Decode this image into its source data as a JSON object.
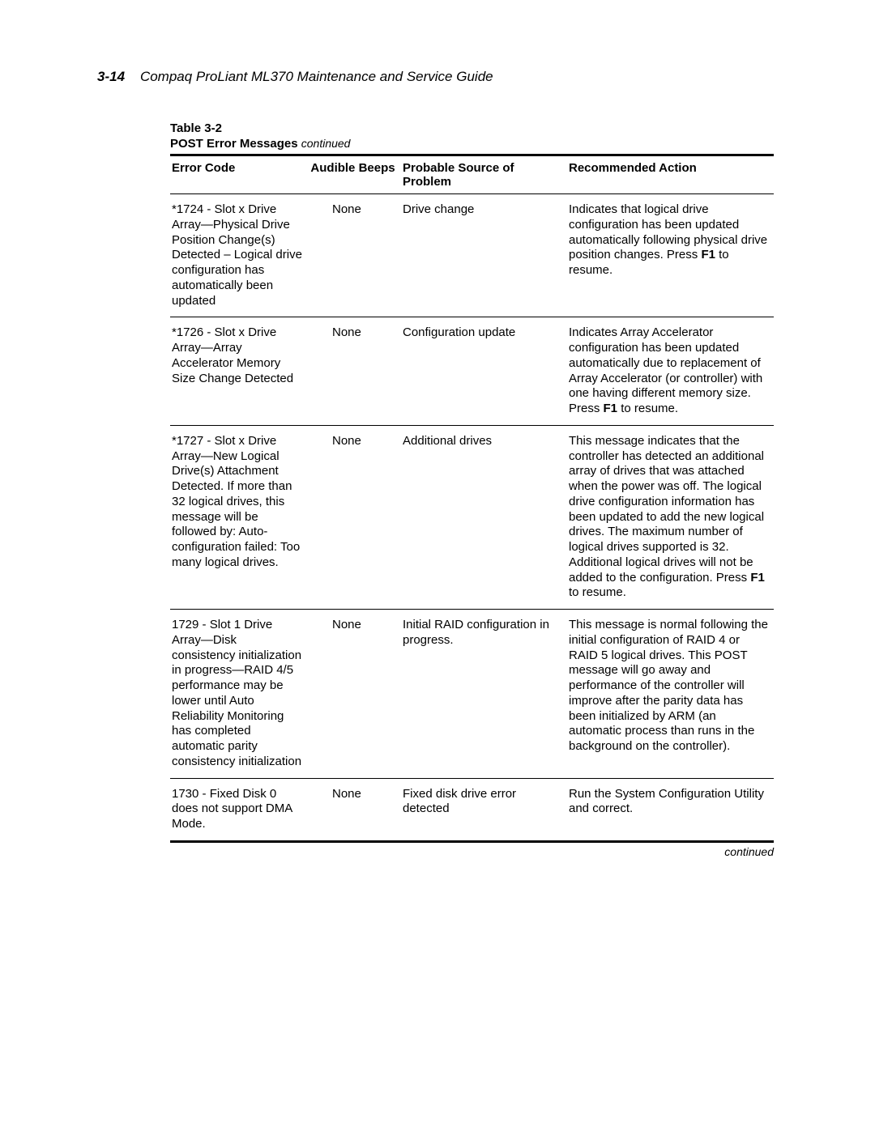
{
  "page_header": {
    "page_num": "3-14",
    "title": "Compaq ProLiant ML370 Maintenance and Service Guide"
  },
  "table": {
    "label": "Table 3-2",
    "title": "POST Error Messages",
    "title_suffix": "continued",
    "columns": [
      "Error Code",
      "Audible Beeps",
      "Probable Source of Problem",
      "Recommended Action"
    ],
    "col_widths": [
      "170px",
      "115px",
      "205px",
      "auto"
    ],
    "rows": [
      {
        "code": "*1724 - Slot x Drive Array—Physical Drive Position Change(s) Detected – Logical drive configuration has automatically been updated",
        "beeps": "None",
        "source": "Drive change",
        "action_pre": "Indicates that logical drive configuration has been updated automatically following physical drive position changes. Press ",
        "action_bold": "F1",
        "action_post": " to resume."
      },
      {
        "code": "*1726 - Slot x Drive Array—Array Accelerator Memory Size Change Detected",
        "beeps": "None",
        "source": "Configuration update",
        "action_pre": "Indicates Array Accelerator configuration has been updated automatically due to replacement of Array Accelerator (or controller) with one having different memory size. Press ",
        "action_bold": "F1",
        "action_post": " to resume."
      },
      {
        "code": "*1727 - Slot x Drive Array—New Logical Drive(s) Attachment Detected. If more than 32 logical drives, this message will be followed by: Auto-configuration failed: Too many logical drives.",
        "beeps": "None",
        "source": "Additional drives",
        "action_pre": "This message indicates that the controller has detected an additional array of drives that was attached when the power was off. The logical drive configuration information has been updated to add the new logical drives. The maximum number of logical drives supported is 32. Additional logical drives will not be added to the configuration. Press ",
        "action_bold": "F1",
        "action_post": " to resume."
      },
      {
        "code": "1729 - Slot 1 Drive Array—Disk consistency initialization in progress—RAID 4/5 performance may be lower until Auto Reliability Monitoring has completed automatic parity consistency initialization",
        "beeps": "None",
        "source": "Initial RAID configuration in progress.",
        "action_pre": "This message is normal following the initial configuration of RAID 4 or RAID 5 logical drives. This POST message will go away and performance of the controller will improve after the parity data has been initialized by ARM (an automatic process than runs in the background on the controller).",
        "action_bold": "",
        "action_post": ""
      },
      {
        "code": "1730 - Fixed Disk 0 does not support DMA Mode.",
        "beeps": "None",
        "source": "Fixed disk drive error detected",
        "action_pre": "Run the System Configuration Utility and correct.",
        "action_bold": "",
        "action_post": ""
      }
    ],
    "footer": "continued"
  }
}
